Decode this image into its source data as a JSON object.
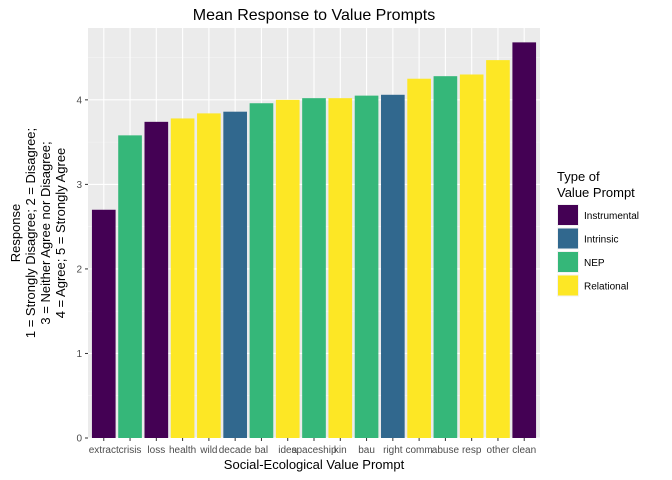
{
  "chart_data": {
    "type": "bar",
    "title": "Mean Response to Value Prompts",
    "xlabel": "Social-Ecological Value Prompt",
    "ylabel_lines": [
      "Response",
      "1 = Strongly Disagree; 2 = Disagree;",
      "3 = Neither Agree nor Disagree;",
      "4 = Agree; 5 = Strongly Agree"
    ],
    "ylim": [
      0,
      4.85
    ],
    "yticks": [
      0,
      1,
      2,
      3,
      4
    ],
    "grid": true,
    "legend_position": "right",
    "legend_title_lines": [
      "Type of",
      "Value Prompt"
    ],
    "legend": [
      {
        "name": "Instrumental",
        "color": "#440154"
      },
      {
        "name": "Intrinsic",
        "color": "#31688e"
      },
      {
        "name": "NEP",
        "color": "#35b779"
      },
      {
        "name": "Relational",
        "color": "#fde725"
      }
    ],
    "categories": [
      "extract",
      "crisis",
      "loss",
      "health",
      "wild",
      "decade",
      "bal",
      "idea",
      "spaceship",
      "kin",
      "bau",
      "right",
      "comm",
      "abuse",
      "resp",
      "other",
      "clean"
    ],
    "values": [
      2.7,
      3.58,
      3.74,
      3.78,
      3.84,
      3.86,
      3.96,
      4.0,
      4.02,
      4.02,
      4.05,
      4.06,
      4.25,
      4.28,
      4.3,
      4.47,
      4.68
    ],
    "types": [
      "Instrumental",
      "NEP",
      "Instrumental",
      "Relational",
      "Relational",
      "Intrinsic",
      "NEP",
      "Relational",
      "NEP",
      "Relational",
      "NEP",
      "Intrinsic",
      "Relational",
      "NEP",
      "Relational",
      "Relational",
      "Instrumental"
    ]
  }
}
